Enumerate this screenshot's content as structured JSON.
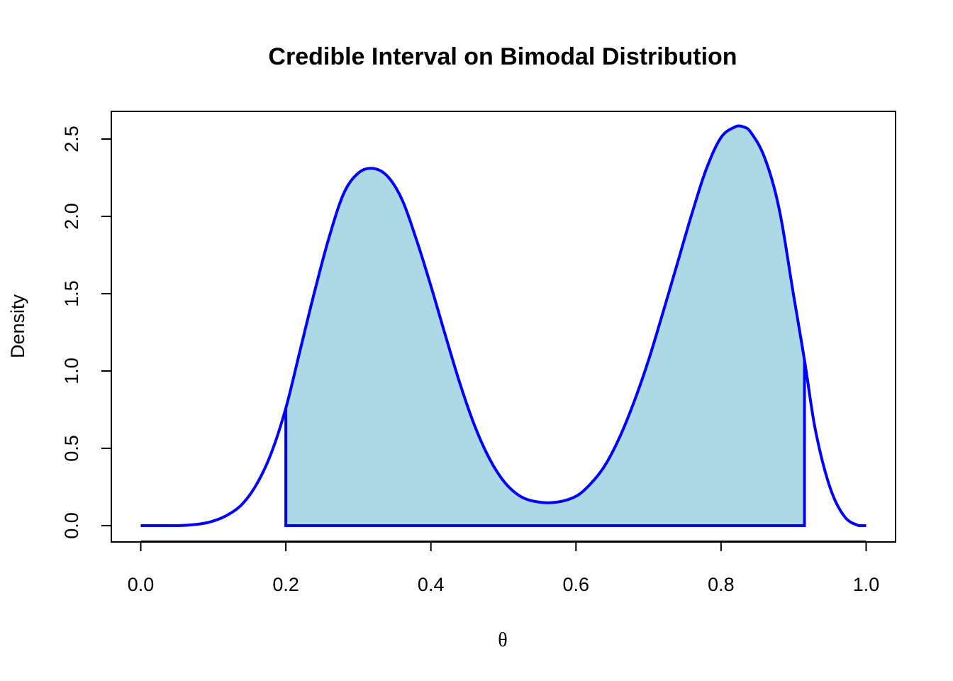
{
  "chart_data": {
    "type": "area",
    "title": "Credible Interval on Bimodal Distribution",
    "xlabel": "θ",
    "ylabel": "Density",
    "xlim": [
      0,
      1
    ],
    "ylim": [
      0,
      2.6
    ],
    "x_ticks": [
      0.0,
      0.2,
      0.4,
      0.6,
      0.8,
      1.0
    ],
    "x_tick_labels": [
      "0.0",
      "0.2",
      "0.4",
      "0.6",
      "0.8",
      "1.0"
    ],
    "y_ticks": [
      0.0,
      0.5,
      1.0,
      1.5,
      2.0,
      2.5
    ],
    "y_tick_labels": [
      "0.0",
      "0.5",
      "1.0",
      "1.5",
      "2.0",
      "2.5"
    ],
    "grid": false,
    "line_color": "#0000ff",
    "fill_color": "#add8e6",
    "credible_interval": [
      0.2,
      0.915
    ],
    "series": [
      {
        "x": [
          0.0,
          0.05,
          0.08,
          0.1,
          0.12,
          0.14,
          0.16,
          0.18,
          0.2,
          0.22,
          0.24,
          0.26,
          0.28,
          0.3,
          0.32,
          0.34,
          0.36,
          0.38,
          0.4,
          0.42,
          0.44,
          0.46,
          0.48,
          0.5,
          0.52,
          0.54,
          0.57,
          0.6,
          0.62,
          0.64,
          0.66,
          0.68,
          0.7,
          0.72,
          0.74,
          0.76,
          0.78,
          0.8,
          0.82,
          0.83,
          0.84,
          0.86,
          0.88,
          0.9,
          0.915,
          0.93,
          0.95,
          0.97,
          0.99,
          1.0
        ],
        "y": [
          0.0,
          0.0,
          0.01,
          0.03,
          0.07,
          0.14,
          0.27,
          0.47,
          0.76,
          1.14,
          1.52,
          1.87,
          2.15,
          2.28,
          2.31,
          2.26,
          2.11,
          1.85,
          1.55,
          1.23,
          0.92,
          0.65,
          0.44,
          0.29,
          0.2,
          0.16,
          0.15,
          0.19,
          0.27,
          0.39,
          0.57,
          0.8,
          1.07,
          1.38,
          1.7,
          2.02,
          2.31,
          2.51,
          2.58,
          2.58,
          2.55,
          2.38,
          2.05,
          1.49,
          1.07,
          0.62,
          0.25,
          0.06,
          0.0,
          0.0
        ]
      }
    ]
  }
}
